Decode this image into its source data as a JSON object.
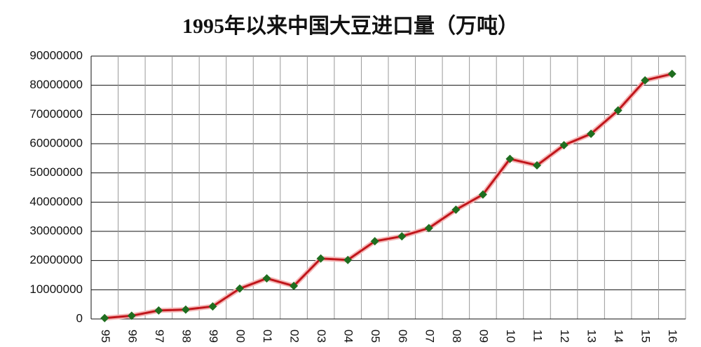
{
  "chart_data": {
    "type": "line",
    "title": "1995年以来中国大豆进口量（万吨）",
    "categories": [
      "95",
      "96",
      "97",
      "98",
      "99",
      "00",
      "01",
      "02",
      "03",
      "04",
      "05",
      "06",
      "07",
      "08",
      "09",
      "10",
      "11",
      "12",
      "13",
      "14",
      "15",
      "16"
    ],
    "series": [
      {
        "name": "进口量",
        "color": "#c0161b",
        "marker_color": "#1f6e1f",
        "values": [
          300000,
          1100000,
          2900000,
          3200000,
          4300000,
          10400000,
          13900000,
          11300000,
          20700000,
          20200000,
          26600000,
          28300000,
          31100000,
          37400000,
          42600000,
          54800000,
          52600000,
          59500000,
          63400000,
          71400000,
          81700000,
          83900000
        ]
      }
    ],
    "ylim": [
      0,
      90000000
    ],
    "yticks": [
      0,
      10000000,
      20000000,
      30000000,
      40000000,
      50000000,
      60000000,
      70000000,
      80000000,
      90000000
    ],
    "grid": true
  }
}
